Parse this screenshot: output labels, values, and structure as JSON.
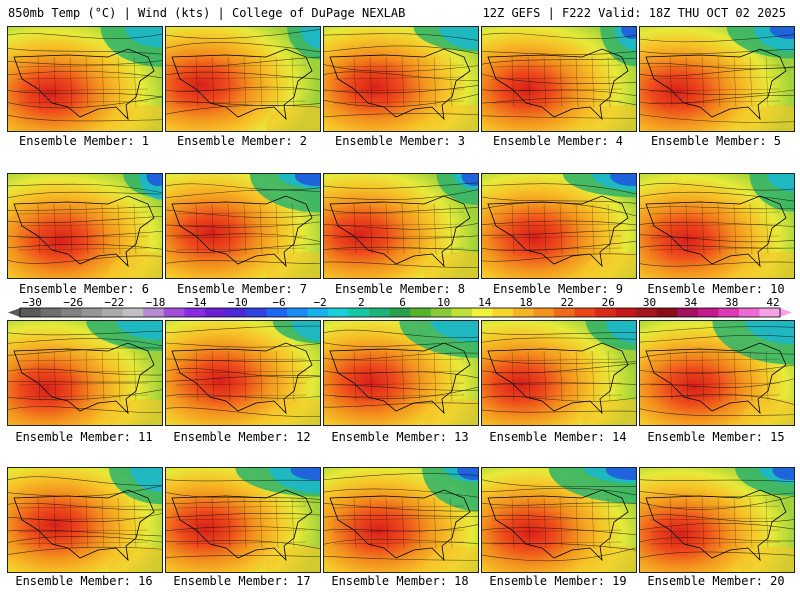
{
  "header": {
    "title": "850mb Temp (°C) | Wind (kts) | College of DuPage NEXLAB",
    "run_info": "12Z GEFS | F222 Valid: 18Z THU OCT 02 2025"
  },
  "panels": [
    {
      "label": "Ensemble Member: 1"
    },
    {
      "label": "Ensemble Member: 2"
    },
    {
      "label": "Ensemble Member: 3"
    },
    {
      "label": "Ensemble Member: 4"
    },
    {
      "label": "Ensemble Member: 5"
    },
    {
      "label": "Ensemble Member: 6"
    },
    {
      "label": "Ensemble Member: 7"
    },
    {
      "label": "Ensemble Member: 8"
    },
    {
      "label": "Ensemble Member: 9"
    },
    {
      "label": "Ensemble Member: 10"
    },
    {
      "label": "Ensemble Member: 11"
    },
    {
      "label": "Ensemble Member: 12"
    },
    {
      "label": "Ensemble Member: 13"
    },
    {
      "label": "Ensemble Member: 14"
    },
    {
      "label": "Ensemble Member: 15"
    },
    {
      "label": "Ensemble Member: 16"
    },
    {
      "label": "Ensemble Member: 17"
    },
    {
      "label": "Ensemble Member: 18"
    },
    {
      "label": "Ensemble Member: 19"
    },
    {
      "label": "Ensemble Member: 20"
    }
  ],
  "colorbar": {
    "tick_labels": [
      "−30",
      "−26",
      "−22",
      "−18",
      "−14",
      "−10",
      "−6",
      "−2",
      "2",
      "6",
      "10",
      "14",
      "18",
      "22",
      "26",
      "30",
      "34",
      "38",
      "42"
    ],
    "colors": [
      "#5a5a5a",
      "#6e6e6e",
      "#828282",
      "#969696",
      "#aaaaaa",
      "#c0c0c0",
      "#b98ad6",
      "#a14fd6",
      "#8a2be2",
      "#6a1fd0",
      "#4b2ad9",
      "#2f44e0",
      "#1f66f0",
      "#1a8cf5",
      "#18b2ee",
      "#19d0d8",
      "#18c7a5",
      "#1fb37a",
      "#27a24a",
      "#53b32b",
      "#89c93a",
      "#bfe03a",
      "#f1f23a",
      "#f6d52c",
      "#f6b324",
      "#f3921e",
      "#ef6b1c",
      "#e8461a",
      "#db2a1a",
      "#c41818",
      "#a4161d",
      "#8a0e1a",
      "#a41060",
      "#c21a8a",
      "#dc3ab5",
      "#ee6ad3",
      "#f6a2e8"
    ]
  }
}
